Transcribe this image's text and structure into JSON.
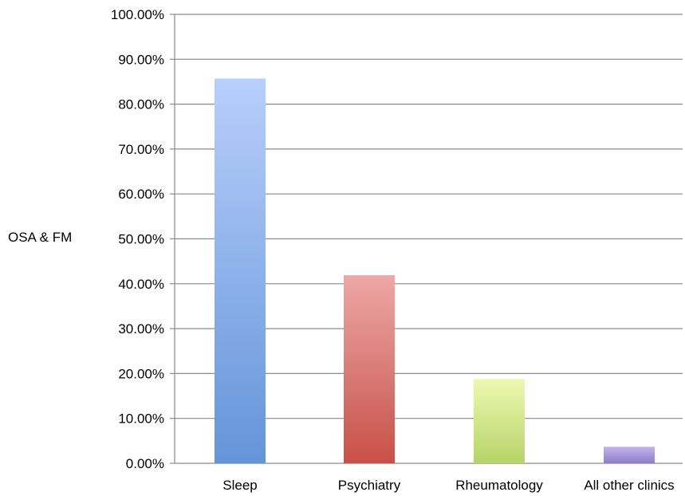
{
  "chart_data": {
    "type": "bar",
    "title": "",
    "xlabel": "",
    "ylabel": "OSA & FM",
    "categories": [
      "Sleep",
      "Psychiatry",
      "Rheumatology",
      "All other clinics"
    ],
    "values": [
      85.7,
      41.9,
      18.8,
      3.7
    ],
    "ylim": [
      0,
      100
    ],
    "yticks": [
      "0.00%",
      "10.00%",
      "20.00%",
      "30.00%",
      "40.00%",
      "50.00%",
      "60.00%",
      "70.00%",
      "80.00%",
      "90.00%",
      "100.00%"
    ],
    "grid": true,
    "legend": "none",
    "colors": [
      {
        "top": "#b7cffb",
        "bottom": "#6594d9"
      },
      {
        "top": "#eda8a7",
        "bottom": "#c85048"
      },
      {
        "top": "#eef8b0",
        "bottom": "#b6d46a"
      },
      {
        "top": "#c4b5ea",
        "bottom": "#8f7cc9"
      }
    ]
  }
}
